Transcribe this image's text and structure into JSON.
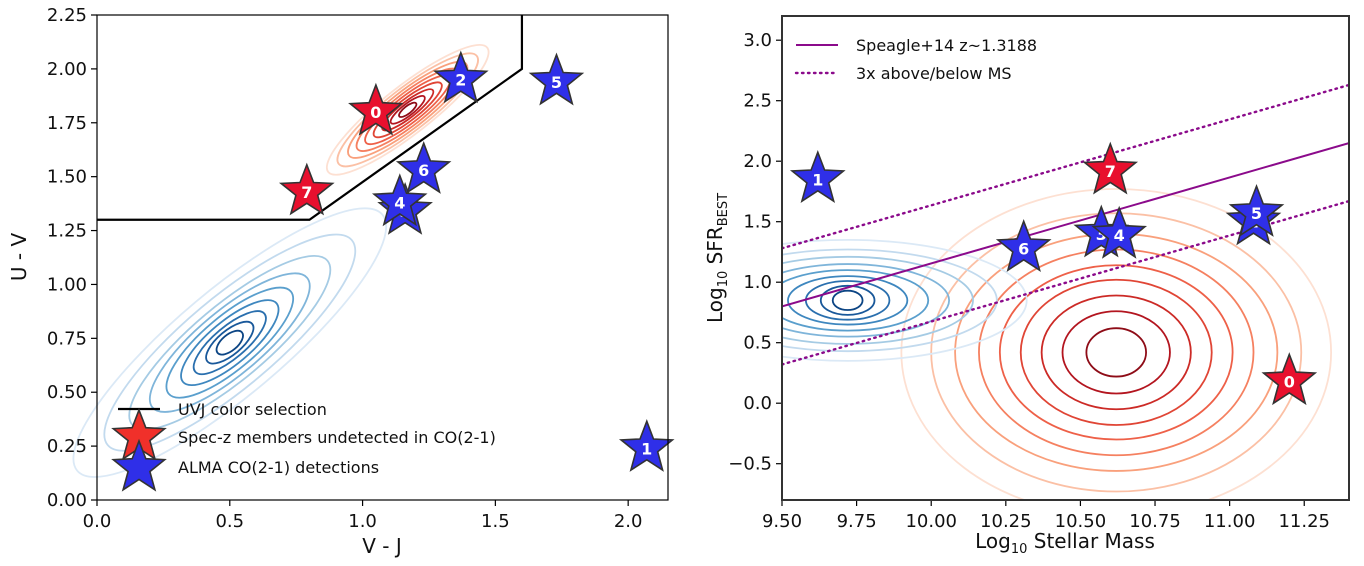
{
  "colors": {
    "member_star": "#e8102e",
    "detection_star": "#2f2fe8",
    "ms_line": "#8b0a8b",
    "red_contours": [
      "#fde0d2",
      "#fbc0a5",
      "#f9a07c",
      "#f58060",
      "#ee6048",
      "#e04535",
      "#cc2a26",
      "#b3151f",
      "#8e0c17"
    ],
    "blue_contours": [
      "#dbe9f6",
      "#c2daee",
      "#a5cbe4",
      "#7fb5da",
      "#5a9fcd",
      "#3e87bf",
      "#2a6fae",
      "#19589a",
      "#0c4584"
    ]
  },
  "chart_data": [
    {
      "type": "scatter",
      "xlabel": "V - J",
      "ylabel": "U - V",
      "xlim": [
        0.0,
        2.15
      ],
      "ylim": [
        0.0,
        2.25
      ],
      "xticks": [
        "0.0",
        "0.5",
        "1.0",
        "1.5",
        "2.0"
      ],
      "yticks": [
        "0.00",
        "0.25",
        "0.50",
        "0.75",
        "1.00",
        "1.25",
        "1.50",
        "1.75",
        "2.00",
        "2.25"
      ],
      "legend_position": "lower-left",
      "legend": [
        "UVJ color selection",
        "Spec-z members undetected in CO(2-1)",
        "ALMA CO(2-1) detections"
      ],
      "selection_box": {
        "x": [
          0.0,
          0.8,
          1.6,
          1.6
        ],
        "y": [
          1.3,
          1.3,
          2.0,
          2.25
        ]
      },
      "series": [
        {
          "name": "Spec-z members undetected in CO(2-1)",
          "points": [
            {
              "id": "0",
              "x": 1.05,
              "y": 1.8
            },
            {
              "id": "7",
              "x": 0.79,
              "y": 1.43
            }
          ]
        },
        {
          "name": "ALMA CO(2-1) detections",
          "points": [
            {
              "id": "1",
              "x": 2.07,
              "y": 0.24
            },
            {
              "id": "2",
              "x": 1.37,
              "y": 1.95
            },
            {
              "id": "3",
              "x": 1.16,
              "y": 1.34
            },
            {
              "id": "4",
              "x": 1.14,
              "y": 1.38
            },
            {
              "id": "5",
              "x": 1.73,
              "y": 1.94
            },
            {
              "id": "6",
              "x": 1.23,
              "y": 1.53
            }
          ]
        }
      ],
      "contours": [
        {
          "group": "red",
          "cx": 1.17,
          "cy": 1.81,
          "rx": [
            0.38,
            0.33,
            0.28,
            0.24,
            0.2,
            0.16,
            0.12,
            0.08,
            0.04
          ],
          "ry": [
            0.09,
            0.08,
            0.07,
            0.06,
            0.05,
            0.04,
            0.03,
            0.022,
            0.014
          ],
          "angle": 38
        },
        {
          "group": "blue",
          "cx": 0.5,
          "cy": 0.73,
          "rx": [
            0.75,
            0.6,
            0.48,
            0.38,
            0.3,
            0.23,
            0.17,
            0.11,
            0.06
          ],
          "ry": [
            0.2,
            0.17,
            0.14,
            0.12,
            0.1,
            0.08,
            0.06,
            0.045,
            0.03
          ],
          "angle": 40
        }
      ]
    },
    {
      "type": "scatter",
      "xlabel": "Log",
      "xlabel_sub": "10",
      "xlabel_rest": " Stellar Mass",
      "ylabel": "Log",
      "ylabel_sub": "10",
      "ylabel_mid": " SFR",
      "ylabel_sub2": "BEST",
      "xlim": [
        9.5,
        11.4
      ],
      "ylim": [
        -0.8,
        3.2
      ],
      "xticks": [
        "9.50",
        "9.75",
        "10.00",
        "10.25",
        "10.50",
        "10.75",
        "11.00",
        "11.25"
      ],
      "yticks": [
        "−0.5",
        "0.0",
        "0.5",
        "1.0",
        "1.5",
        "2.0",
        "2.5",
        "3.0"
      ],
      "legend_position": "top-left",
      "legend": [
        "Speagle+14 z~1.3188",
        "3x above/below MS"
      ],
      "ms_line": {
        "x": [
          9.5,
          11.4
        ],
        "y": [
          0.8,
          2.15
        ]
      },
      "ms_upper": {
        "x": [
          9.5,
          11.4
        ],
        "y": [
          1.28,
          2.63
        ]
      },
      "ms_lower": {
        "x": [
          9.5,
          11.4
        ],
        "y": [
          0.32,
          1.67
        ]
      },
      "series": [
        {
          "name": "members",
          "points": [
            {
              "id": "0",
              "x": 11.2,
              "y": 0.18
            },
            {
              "id": "7",
              "x": 10.6,
              "y": 1.92
            }
          ]
        },
        {
          "name": "detections",
          "points": [
            {
              "id": "1",
              "x": 9.62,
              "y": 1.85
            },
            {
              "id": "2",
              "x": 11.08,
              "y": 1.5
            },
            {
              "id": "3",
              "x": 10.57,
              "y": 1.4
            },
            {
              "id": "4",
              "x": 10.63,
              "y": 1.39
            },
            {
              "id": "5",
              "x": 11.09,
              "y": 1.57
            },
            {
              "id": "6",
              "x": 10.31,
              "y": 1.28
            }
          ]
        }
      ],
      "contours": [
        {
          "group": "red",
          "cx": 10.62,
          "cy": 0.42,
          "rx": [
            0.72,
            0.62,
            0.54,
            0.46,
            0.39,
            0.32,
            0.25,
            0.18,
            0.1
          ],
          "ry": [
            1.35,
            1.15,
            0.98,
            0.85,
            0.72,
            0.6,
            0.47,
            0.34,
            0.2
          ],
          "angle": 0
        },
        {
          "group": "blue",
          "cx": 9.72,
          "cy": 0.85,
          "rx": [
            0.6,
            0.5,
            0.42,
            0.34,
            0.27,
            0.2,
            0.14,
            0.09,
            0.05
          ],
          "ry": [
            0.5,
            0.42,
            0.36,
            0.3,
            0.25,
            0.2,
            0.16,
            0.12,
            0.08
          ],
          "angle": 0
        }
      ]
    }
  ]
}
